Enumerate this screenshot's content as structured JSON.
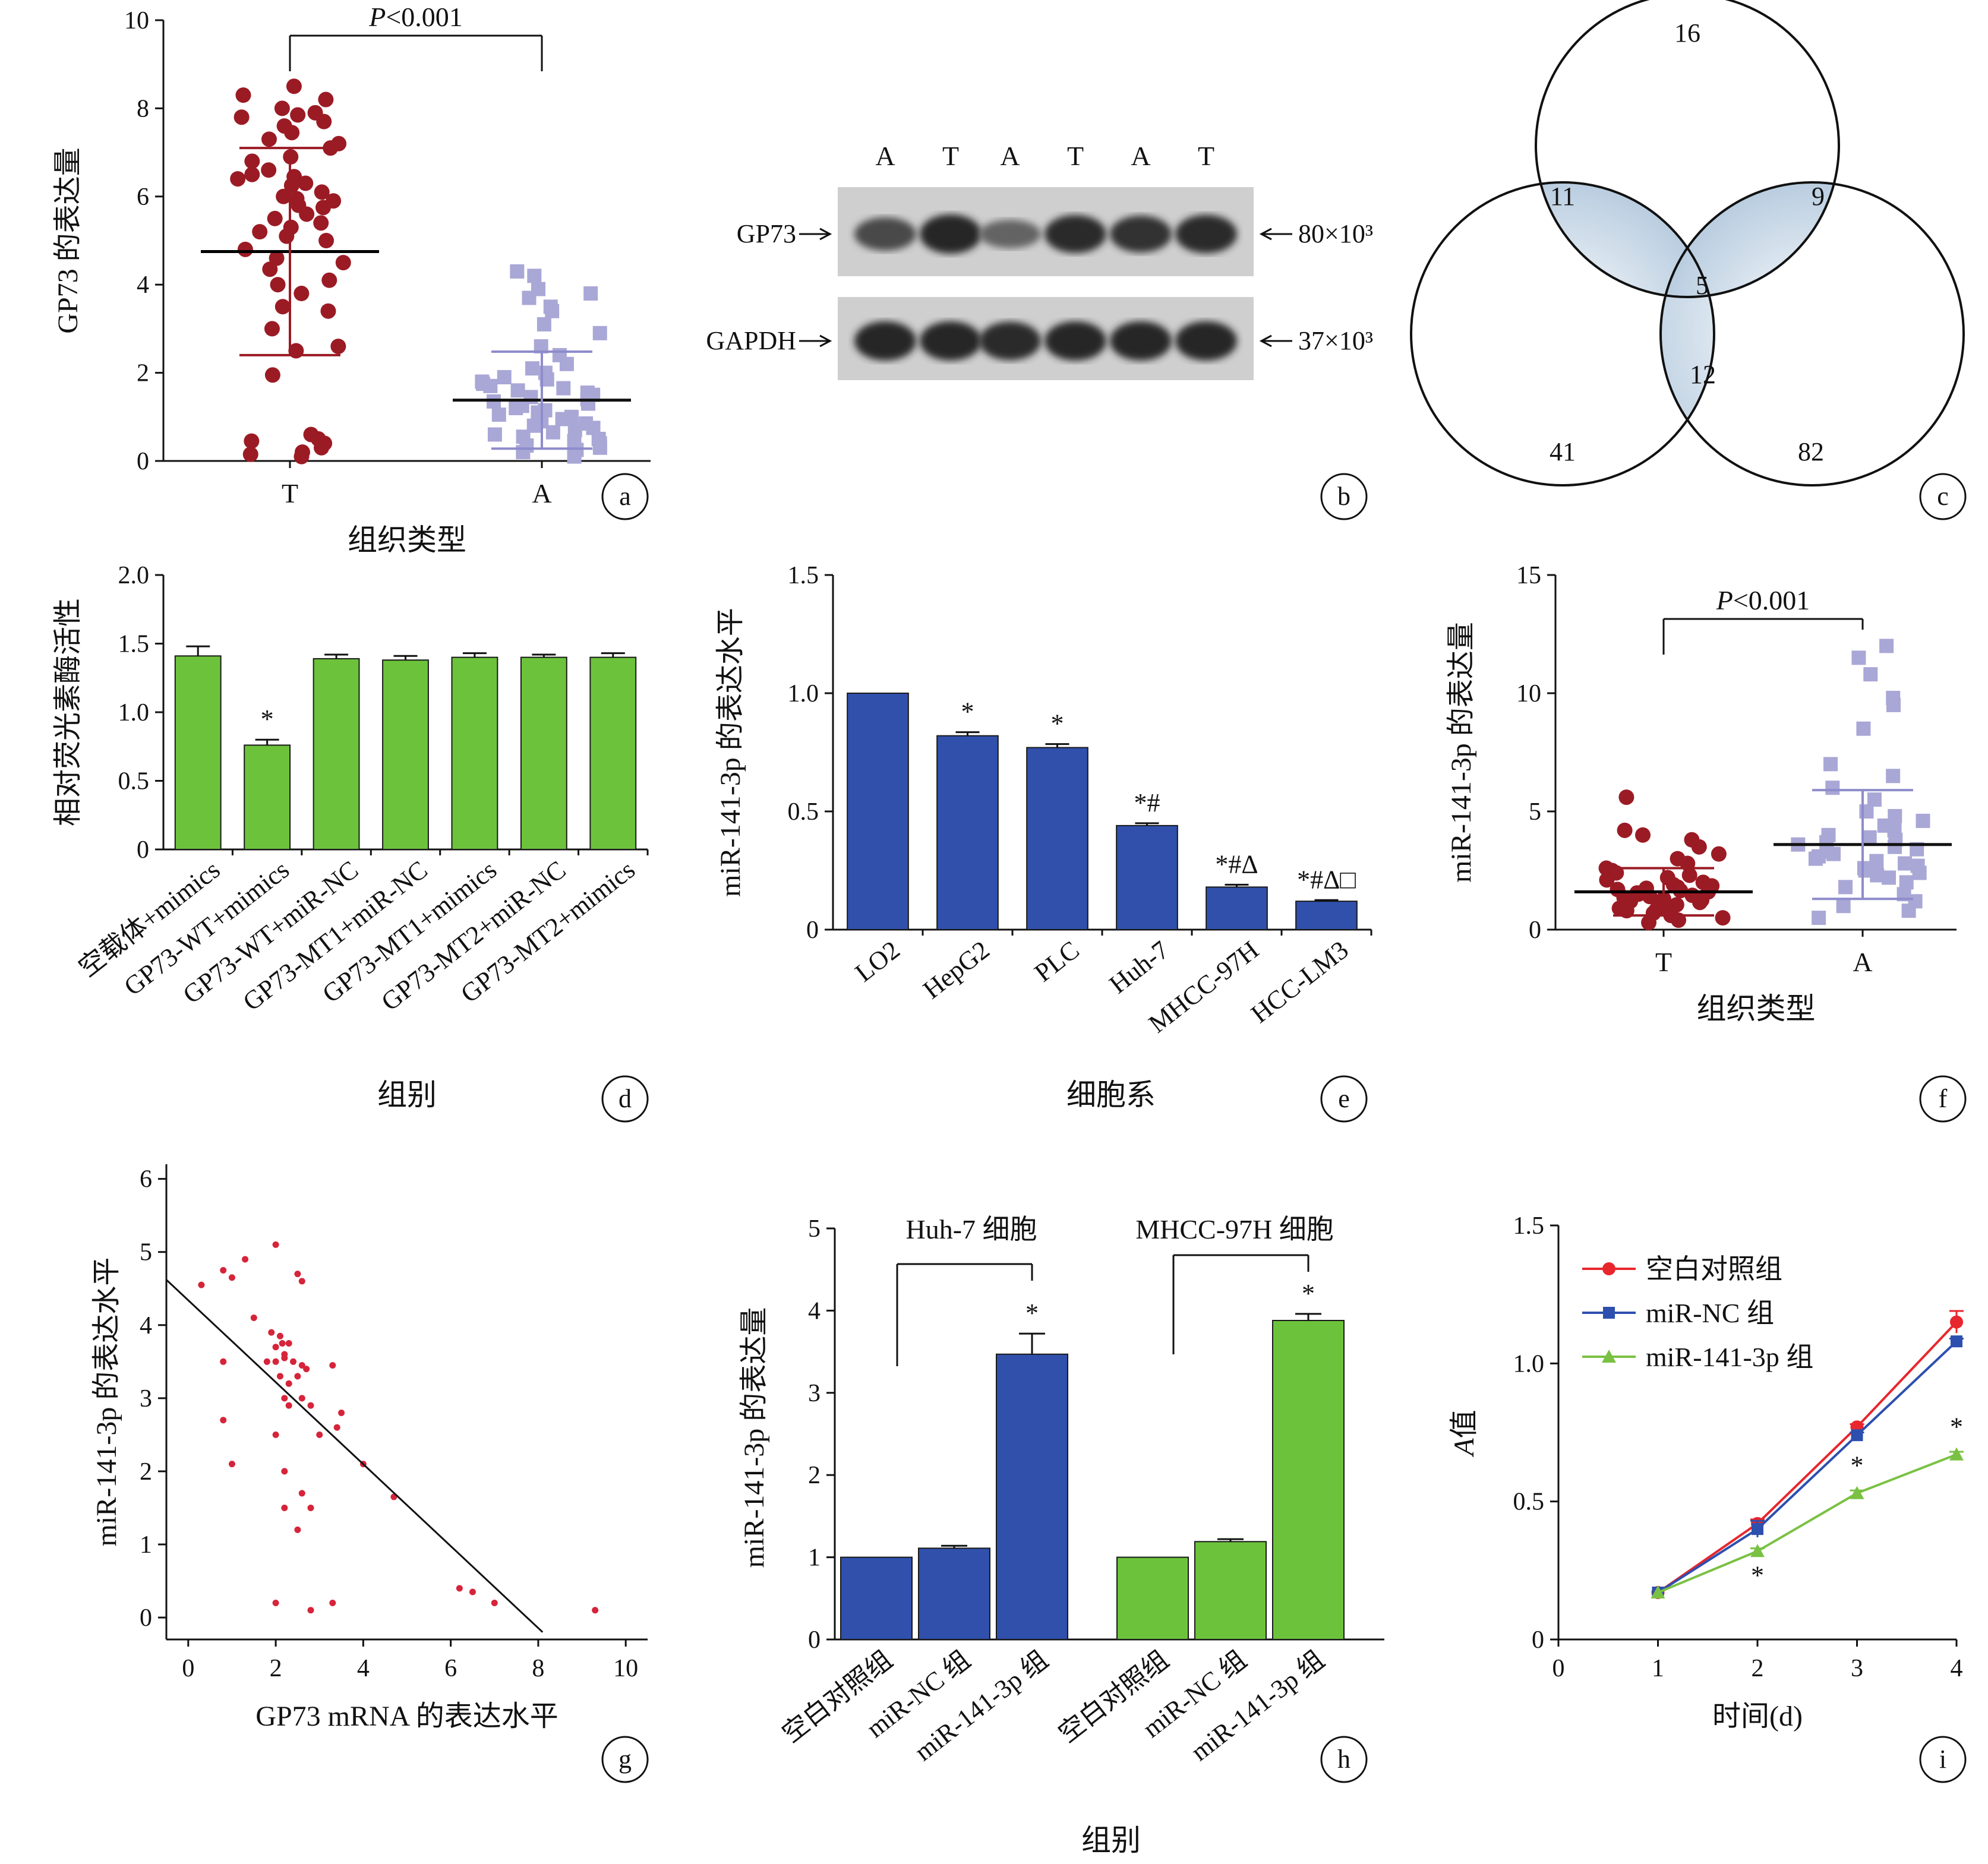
{
  "chart_data": [
    {
      "id": "a",
      "panel_label": "a",
      "type": "scatter",
      "ylabel": "GP73 的表达量",
      "xlabel": "组织类型",
      "ylim": [
        0,
        10
      ],
      "yticks": [
        "0",
        "2",
        "4",
        "6",
        "8",
        "10"
      ],
      "categories": [
        "T",
        "A"
      ],
      "significance": "P<0.001",
      "series": [
        {
          "name": "T",
          "mean": 4.75,
          "sd": 2.35,
          "color": "#9b1b24",
          "values": [
            8.5,
            8.3,
            8.2,
            8.0,
            7.9,
            7.85,
            7.8,
            7.7,
            7.6,
            7.45,
            7.3,
            7.2,
            7.1,
            6.9,
            6.8,
            6.6,
            6.5,
            6.45,
            6.4,
            6.3,
            6.25,
            6.1,
            6.0,
            5.95,
            5.9,
            5.8,
            5.75,
            5.6,
            5.5,
            5.4,
            5.3,
            5.2,
            5.1,
            5.0,
            4.8,
            4.6,
            4.5,
            4.35,
            4.1,
            4.0,
            3.8,
            3.5,
            3.4,
            3.0,
            2.6,
            2.5,
            1.95,
            0.6,
            0.5,
            0.45,
            0.4,
            0.3,
            0.2,
            0.15,
            0.1
          ]
        },
        {
          "name": "A",
          "mean": 1.38,
          "sd": 1.1,
          "color": "#a9a7d6",
          "values": [
            4.3,
            4.2,
            3.9,
            3.8,
            3.7,
            3.5,
            3.4,
            3.1,
            2.9,
            2.6,
            2.4,
            2.2,
            2.1,
            2.0,
            1.9,
            1.85,
            1.8,
            1.75,
            1.7,
            1.65,
            1.6,
            1.55,
            1.5,
            1.45,
            1.4,
            1.35,
            1.3,
            1.25,
            1.2,
            1.15,
            1.1,
            1.05,
            1.0,
            0.95,
            0.9,
            0.85,
            0.8,
            0.75,
            0.7,
            0.65,
            0.6,
            0.55,
            0.5,
            0.45,
            0.4,
            0.35,
            0.3,
            0.25,
            0.2,
            0.1
          ]
        }
      ]
    },
    {
      "id": "b",
      "panel_label": "b",
      "type": "other",
      "lane_labels": [
        "A",
        "T",
        "A",
        "T",
        "A",
        "T"
      ],
      "bands": [
        {
          "name": "GP73",
          "mw": "80×10³",
          "intensity": [
            0.7,
            0.95,
            0.5,
            0.9,
            0.85,
            0.92
          ]
        },
        {
          "name": "GAPDH",
          "mw": "37×10³",
          "intensity": [
            0.95,
            0.95,
            0.92,
            0.95,
            0.95,
            0.95
          ]
        }
      ]
    },
    {
      "id": "c",
      "panel_label": "c",
      "type": "other",
      "venn": {
        "top_only": "16",
        "left_only": "41",
        "right_only": "82",
        "top_left": "11",
        "top_right": "9",
        "left_right": "12",
        "all": "5"
      }
    },
    {
      "id": "d",
      "panel_label": "d",
      "type": "bar",
      "ylabel": "相对荧光素酶活性",
      "xlabel": "组别",
      "ylim": [
        0,
        2.0
      ],
      "yticks": [
        "0",
        "0.5",
        "1.0",
        "1.5",
        "2.0"
      ],
      "color": "#6cc33b",
      "categories": [
        "空载体+mimics",
        "GP73-WT+mimics",
        "GP73-WT+miR-NC",
        "GP73-MT1+miR-NC",
        "GP73-MT1+mimics",
        "GP73-MT2+miR-NC",
        "GP73-MT2+mimics"
      ],
      "values": [
        1.41,
        0.76,
        1.39,
        1.38,
        1.4,
        1.4,
        1.4
      ],
      "errors": [
        0.07,
        0.04,
        0.03,
        0.03,
        0.03,
        0.02,
        0.03
      ],
      "annotations": [
        "",
        "*",
        "",
        "",
        "",
        "",
        ""
      ]
    },
    {
      "id": "e",
      "panel_label": "e",
      "type": "bar",
      "ylabel": "miR-141-3p 的表达水平",
      "xlabel": "细胞系",
      "ylim": [
        0,
        1.5
      ],
      "yticks": [
        "0",
        "0.5",
        "1.0",
        "1.5"
      ],
      "color": "#3050ac",
      "categories": [
        "LO2",
        "HepG2",
        "PLC",
        "Huh-7",
        "MHCC-97H",
        "HCC-LM3"
      ],
      "values": [
        1.0,
        0.82,
        0.77,
        0.44,
        0.18,
        0.12
      ],
      "errors": [
        0.0,
        0.015,
        0.015,
        0.01,
        0.01,
        0.005
      ],
      "annotations": [
        "",
        "*",
        "*",
        "*#",
        "*#Δ",
        "*#Δ□"
      ]
    },
    {
      "id": "f",
      "panel_label": "f",
      "type": "scatter",
      "ylabel": "miR-141-3p 的表达量",
      "xlabel": "组织类型",
      "ylim": [
        0,
        15
      ],
      "yticks": [
        "0",
        "5",
        "10",
        "15"
      ],
      "categories": [
        "T",
        "A"
      ],
      "significance": "P<0.001",
      "series": [
        {
          "name": "T",
          "mean": 1.6,
          "sd": 1.0,
          "color": "#9b1b24",
          "values": [
            5.6,
            4.2,
            4.0,
            3.8,
            3.5,
            3.2,
            3.0,
            2.8,
            2.6,
            2.5,
            2.4,
            2.3,
            2.2,
            2.1,
            2.0,
            1.9,
            1.85,
            1.8,
            1.75,
            1.7,
            1.65,
            1.6,
            1.55,
            1.5,
            1.45,
            1.4,
            1.35,
            1.3,
            1.25,
            1.2,
            1.15,
            1.1,
            1.05,
            1.0,
            0.95,
            0.9,
            0.85,
            0.8,
            0.7,
            0.6,
            0.5,
            0.4,
            0.3
          ]
        },
        {
          "name": "A",
          "mean": 3.6,
          "sd": 2.3,
          "color": "#a9a7d6",
          "values": [
            12.0,
            11.5,
            10.8,
            9.8,
            9.5,
            8.5,
            7.0,
            6.5,
            6.0,
            5.5,
            5.0,
            4.8,
            4.6,
            4.4,
            4.2,
            4.0,
            3.9,
            3.8,
            3.7,
            3.6,
            3.5,
            3.4,
            3.3,
            3.2,
            3.1,
            3.0,
            2.9,
            2.8,
            2.7,
            2.6,
            2.5,
            2.4,
            2.3,
            2.2,
            2.0,
            1.8,
            1.5,
            1.2,
            1.0,
            0.8,
            0.5
          ]
        }
      ]
    },
    {
      "id": "g",
      "panel_label": "g",
      "type": "scatter",
      "ylabel": "miR-141-3p 的表达水平",
      "xlabel": "GP73 mRNA 的表达水平",
      "xlim": [
        -0.5,
        10.5
      ],
      "ylim": [
        -0.3,
        6.2
      ],
      "xticks": [
        "0",
        "2",
        "4",
        "6",
        "8",
        "10"
      ],
      "yticks": [
        "0",
        "1",
        "2",
        "3",
        "4",
        "5",
        "6"
      ],
      "color": "#d6243a",
      "fit_line": {
        "x": [
          -0.5,
          8.1
        ],
        "y": [
          4.62,
          -0.2
        ]
      },
      "points": [
        [
          0.3,
          4.55
        ],
        [
          0.8,
          4.75
        ],
        [
          1.0,
          4.65
        ],
        [
          1.3,
          4.9
        ],
        [
          2.0,
          5.1
        ],
        [
          2.5,
          4.7
        ],
        [
          2.6,
          4.6
        ],
        [
          1.5,
          4.1
        ],
        [
          1.9,
          3.9
        ],
        [
          2.0,
          3.7
        ],
        [
          2.1,
          3.85
        ],
        [
          2.15,
          3.75
        ],
        [
          2.2,
          3.6
        ],
        [
          2.3,
          3.75
        ],
        [
          2.2,
          3.55
        ],
        [
          2.4,
          3.5
        ],
        [
          2.5,
          3.3
        ],
        [
          2.6,
          3.45
        ],
        [
          2.7,
          3.4
        ],
        [
          2.0,
          3.5
        ],
        [
          2.1,
          3.3
        ],
        [
          2.3,
          3.2
        ],
        [
          1.8,
          3.5
        ],
        [
          0.8,
          3.5
        ],
        [
          2.2,
          3.0
        ],
        [
          2.3,
          2.9
        ],
        [
          2.6,
          3.0
        ],
        [
          2.8,
          2.9
        ],
        [
          3.3,
          3.45
        ],
        [
          3.5,
          2.8
        ],
        [
          3.4,
          2.6
        ],
        [
          3.0,
          2.5
        ],
        [
          0.8,
          2.7
        ],
        [
          2.0,
          2.5
        ],
        [
          1.0,
          2.1
        ],
        [
          2.2,
          2.0
        ],
        [
          2.6,
          1.7
        ],
        [
          2.2,
          1.5
        ],
        [
          2.5,
          1.2
        ],
        [
          2.8,
          1.5
        ],
        [
          4.0,
          2.1
        ],
        [
          4.7,
          1.65
        ],
        [
          2.0,
          0.2
        ],
        [
          3.3,
          0.2
        ],
        [
          2.8,
          0.1
        ],
        [
          6.2,
          0.4
        ],
        [
          6.5,
          0.35
        ],
        [
          7.0,
          0.2
        ],
        [
          9.3,
          0.1
        ]
      ]
    },
    {
      "id": "h",
      "panel_label": "h",
      "type": "bar",
      "ylabel": "miR-141-3p 的表达量",
      "xlabel": "组别",
      "ylim": [
        0,
        5
      ],
      "yticks": [
        "0",
        "1",
        "2",
        "3",
        "4",
        "5"
      ],
      "categories": [
        "空白对照组",
        "miR-NC 组",
        "miR-141-3p 组"
      ],
      "groups": [
        {
          "name": "Huh-7 细胞",
          "color": "#3050ac",
          "values": [
            1.0,
            1.11,
            3.47
          ],
          "errors": [
            0.0,
            0.03,
            0.25
          ],
          "annotations": [
            "",
            "",
            "*"
          ]
        },
        {
          "name": "MHCC-97H 细胞",
          "color": "#6cc33b",
          "values": [
            1.0,
            1.19,
            3.88
          ],
          "errors": [
            0.0,
            0.03,
            0.08
          ],
          "annotations": [
            "",
            "",
            "*"
          ]
        }
      ]
    },
    {
      "id": "i",
      "panel_label": "i",
      "type": "line",
      "ylabel": "A值",
      "xlabel": "时间(d)",
      "xlim": [
        0,
        4
      ],
      "ylim": [
        0,
        1.5
      ],
      "xticks": [
        "0",
        "1",
        "2",
        "3",
        "4"
      ],
      "yticks": [
        "0",
        "0.5",
        "1.0",
        "1.5"
      ],
      "legend_position": "top-left",
      "x": [
        1,
        2,
        3,
        4
      ],
      "series": [
        {
          "name": "空白对照组",
          "color": "#e8262d",
          "marker": "circle",
          "values": [
            0.17,
            0.42,
            0.77,
            1.15
          ],
          "errors": [
            0.005,
            0.015,
            0.01,
            0.04
          ],
          "annotations": [
            "",
            "",
            "",
            ""
          ]
        },
        {
          "name": "miR-NC 组",
          "color": "#2d4fae",
          "marker": "square",
          "values": [
            0.17,
            0.4,
            0.74,
            1.08
          ],
          "errors": [
            0.005,
            0.03,
            0.01,
            0.01
          ],
          "annotations": [
            "",
            "",
            "",
            ""
          ]
        },
        {
          "name": "miR-141-3p 组",
          "color": "#7ac143",
          "marker": "triangle",
          "values": [
            0.17,
            0.32,
            0.53,
            0.67
          ],
          "errors": [
            0.005,
            0.01,
            0.01,
            0.01
          ],
          "annotations": [
            "",
            "*",
            "*",
            "*"
          ]
        }
      ]
    }
  ]
}
